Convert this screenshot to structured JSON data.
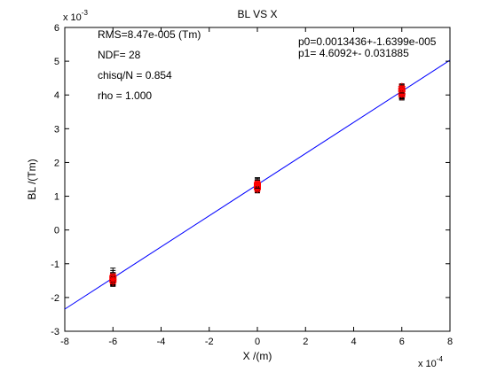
{
  "chart_data": {
    "type": "scatter",
    "title": "BL VS X",
    "xlabel": "X /(m)",
    "ylabel": "BL /(Tm)",
    "x_multiplier": "x 10",
    "x_exponent": "-4",
    "y_multiplier": "x 10",
    "y_exponent": "-3",
    "xlim": [
      -8,
      8
    ],
    "ylim": [
      -3,
      6
    ],
    "xticks": [
      "-8",
      "-6",
      "-4",
      "-2",
      "0",
      "2",
      "4",
      "6",
      "8"
    ],
    "yticks": [
      "-3",
      "-2",
      "-1",
      "0",
      "1",
      "2",
      "3",
      "4",
      "5",
      "6"
    ],
    "grid": false,
    "annotations_left": [
      "RMS=8.47e-005 (Tm)",
      "NDF=   28",
      "chisq/N = 0.854",
      "rho     =  1.000"
    ],
    "annotations_right": [
      "p0=0.0013436+-1.6399e-005",
      "p1=   4.6092+- 0.031885"
    ],
    "fit_line": {
      "intercept": 1.3436,
      "slope": 0.46092,
      "color": "#0000ff"
    },
    "marker_color": "#ff0000",
    "errorbar_color": "#000000",
    "points": [
      {
        "x": -6.0,
        "y": -1.35,
        "err": 0.22
      },
      {
        "x": -6.0,
        "y": -1.4,
        "err": 0.2
      },
      {
        "x": -6.0,
        "y": -1.45,
        "err": 0.18
      },
      {
        "x": -6.0,
        "y": -1.5,
        "err": 0.15
      },
      {
        "x": -6.0,
        "y": -1.55,
        "err": 0.12
      },
      {
        "x": -6.0,
        "y": -1.42,
        "err": 0.1
      },
      {
        "x": -6.0,
        "y": -1.48,
        "err": 0.1
      },
      {
        "x": -6.0,
        "y": -1.38,
        "err": 0.12
      },
      {
        "x": -6.0,
        "y": -1.52,
        "err": 0.1
      },
      {
        "x": -6.0,
        "y": -1.46,
        "err": 0.08
      },
      {
        "x": 0.0,
        "y": 1.25,
        "err": 0.15
      },
      {
        "x": 0.0,
        "y": 1.3,
        "err": 0.18
      },
      {
        "x": 0.0,
        "y": 1.35,
        "err": 0.2
      },
      {
        "x": 0.0,
        "y": 1.4,
        "err": 0.12
      },
      {
        "x": 0.0,
        "y": 1.22,
        "err": 0.1
      },
      {
        "x": 0.0,
        "y": 1.28,
        "err": 0.1
      },
      {
        "x": 0.0,
        "y": 1.33,
        "err": 0.08
      },
      {
        "x": 0.0,
        "y": 1.38,
        "err": 0.1
      },
      {
        "x": 0.0,
        "y": 1.2,
        "err": 0.08
      },
      {
        "x": 0.0,
        "y": 1.36,
        "err": 0.12
      },
      {
        "x": 6.0,
        "y": 3.95,
        "err": 0.1
      },
      {
        "x": 6.0,
        "y": 4.0,
        "err": 0.12
      },
      {
        "x": 6.0,
        "y": 4.05,
        "err": 0.15
      },
      {
        "x": 6.0,
        "y": 4.1,
        "err": 0.12
      },
      {
        "x": 6.0,
        "y": 4.15,
        "err": 0.1
      },
      {
        "x": 6.0,
        "y": 4.2,
        "err": 0.08
      },
      {
        "x": 6.0,
        "y": 4.25,
        "err": 0.08
      },
      {
        "x": 6.0,
        "y": 4.12,
        "err": 0.1
      },
      {
        "x": 6.0,
        "y": 4.02,
        "err": 0.1
      },
      {
        "x": 6.0,
        "y": 4.18,
        "err": 0.12
      }
    ]
  }
}
